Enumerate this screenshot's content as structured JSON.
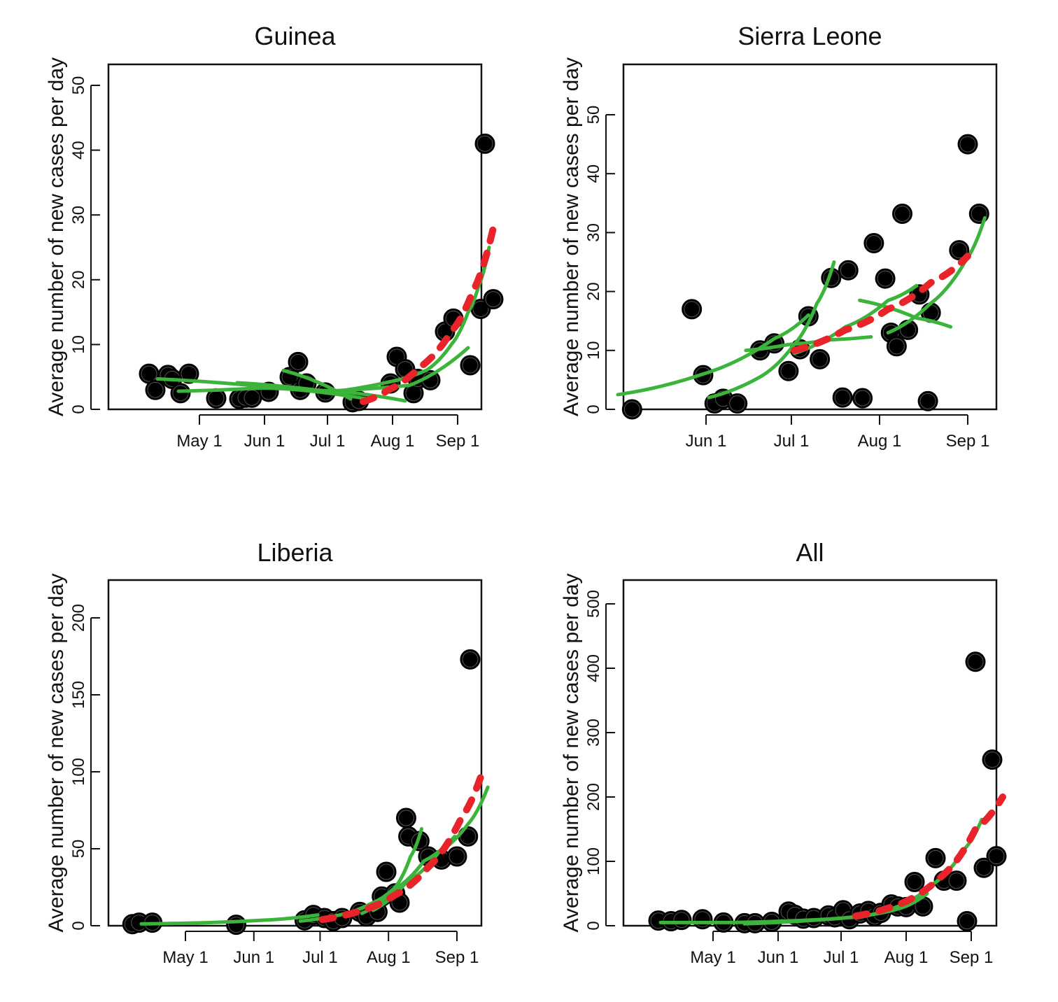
{
  "chart_data": [
    {
      "type": "scatter",
      "title": "Guinea",
      "xlabel": "",
      "ylabel": "Average number of new cases per day",
      "ylim": [
        0,
        50
      ],
      "xlim": [
        0,
        170
      ],
      "yticks": [
        0,
        10,
        20,
        30,
        40,
        50
      ],
      "xticks": [
        {
          "x": 30,
          "label": "May 1"
        },
        {
          "x": 61,
          "label": "Jun 1"
        },
        {
          "x": 91,
          "label": "Jul 1"
        },
        {
          "x": 122,
          "label": "Aug 1"
        },
        {
          "x": 153,
          "label": "Sep 1"
        }
      ],
      "points": [
        [
          6,
          5.5
        ],
        [
          9,
          3
        ],
        [
          15,
          5.3
        ],
        [
          17,
          4.7
        ],
        [
          21,
          2.5
        ],
        [
          25,
          5.5
        ],
        [
          38,
          1.7
        ],
        [
          49,
          1.6
        ],
        [
          52,
          1.8
        ],
        [
          55,
          1.8
        ],
        [
          63,
          2.7
        ],
        [
          73,
          5
        ],
        [
          77,
          7.3
        ],
        [
          78,
          3
        ],
        [
          81,
          4
        ],
        [
          90,
          2.6
        ],
        [
          103,
          1.1
        ],
        [
          106,
          1.3
        ],
        [
          121,
          4
        ],
        [
          124,
          8.1
        ],
        [
          128,
          6.2
        ],
        [
          132,
          2.5
        ],
        [
          134,
          4.7
        ],
        [
          140,
          4.5
        ],
        [
          147,
          12
        ],
        [
          151,
          14
        ],
        [
          159,
          6.8
        ],
        [
          164,
          15.5
        ],
        [
          166,
          41
        ],
        [
          170,
          17
        ]
      ],
      "series": [
        {
          "name": "fit-1",
          "style": "solid",
          "points": [
            [
              10,
              4.7
            ],
            [
              70,
              3.2
            ],
            [
              110,
              1.6
            ]
          ]
        },
        {
          "name": "fit-2",
          "style": "solid",
          "points": [
            [
              20,
              2.8
            ],
            [
              60,
              3.3
            ],
            [
              95,
              2.8
            ],
            [
              128,
              1.3
            ]
          ]
        },
        {
          "name": "fit-3",
          "style": "solid",
          "points": [
            [
              48,
              4.1
            ],
            [
              90,
              2.8
            ],
            [
              130,
              3.7
            ],
            [
              158,
              9.5
            ]
          ]
        },
        {
          "name": "fit-4",
          "style": "solid",
          "points": [
            [
              70,
              6
            ],
            [
              102,
              1.6
            ]
          ]
        },
        {
          "name": "fit-5",
          "style": "solid",
          "points": [
            [
              90,
              2.6
            ],
            [
              120,
              4.2
            ],
            [
              138,
              6
            ],
            [
              150,
              10
            ],
            [
              158,
              15
            ],
            [
              163,
              19
            ],
            [
              168,
              25
            ]
          ]
        },
        {
          "name": "projection",
          "style": "dashed",
          "points": [
            [
              108,
              1.2
            ],
            [
              120,
              3
            ],
            [
              135,
              6.5
            ],
            [
              150,
              12
            ],
            [
              160,
              18
            ],
            [
              170,
              28
            ]
          ]
        }
      ]
    },
    {
      "type": "scatter",
      "title": "Sierra Leone",
      "xlabel": "",
      "ylabel": "Average number of new cases per day",
      "ylim": [
        0,
        50
      ],
      "xlim": [
        0,
        135
      ],
      "yticks": [
        0,
        10,
        20,
        30,
        40,
        50
      ],
      "xticks": [
        {
          "x": 31,
          "label": "Jun 1"
        },
        {
          "x": 61,
          "label": "Jul 1"
        },
        {
          "x": 92,
          "label": "Aug 1"
        },
        {
          "x": 123,
          "label": "Sep 1"
        }
      ],
      "points": [
        [
          5,
          0
        ],
        [
          26,
          17
        ],
        [
          30,
          5.8
        ],
        [
          34,
          1
        ],
        [
          37,
          1.8
        ],
        [
          42,
          1
        ],
        [
          50,
          10
        ],
        [
          55,
          11.2
        ],
        [
          60,
          6.5
        ],
        [
          64,
          10.2
        ],
        [
          67,
          15.8
        ],
        [
          71,
          8.5
        ],
        [
          75,
          22.3
        ],
        [
          79,
          2
        ],
        [
          81,
          23.6
        ],
        [
          86,
          1.9
        ],
        [
          90,
          28.2
        ],
        [
          94,
          22.2
        ],
        [
          96,
          13
        ],
        [
          98,
          10.7
        ],
        [
          100,
          33.2
        ],
        [
          102,
          13.5
        ],
        [
          106,
          19.5
        ],
        [
          109,
          1.4
        ],
        [
          110,
          16.4
        ],
        [
          120,
          27
        ],
        [
          123,
          45
        ],
        [
          127,
          33.2
        ]
      ],
      "series": [
        {
          "name": "fit-1",
          "style": "solid",
          "points": [
            [
              0,
              2.5
            ],
            [
              30,
              6
            ],
            [
              55,
              12
            ],
            [
              67,
              16
            ]
          ]
        },
        {
          "name": "fit-2",
          "style": "solid",
          "points": [
            [
              32,
              2
            ],
            [
              50,
              5.5
            ],
            [
              62,
              11
            ],
            [
              70,
              18
            ],
            [
              76,
              25
            ]
          ]
        },
        {
          "name": "fit-3",
          "style": "solid",
          "points": [
            [
              45,
              10
            ],
            [
              60,
              11
            ],
            [
              75,
              11.8
            ],
            [
              89,
              12.3
            ]
          ]
        },
        {
          "name": "fit-4",
          "style": "solid",
          "points": [
            [
              62,
              9.5
            ],
            [
              80,
              14
            ],
            [
              95,
              18.5
            ],
            [
              105,
              21
            ]
          ]
        },
        {
          "name": "fit-5",
          "style": "solid",
          "points": [
            [
              85,
              18.5
            ],
            [
              105,
              15.5
            ],
            [
              117,
              14
            ]
          ]
        },
        {
          "name": "fit-6",
          "style": "solid",
          "points": [
            [
              95,
              13
            ],
            [
              110,
              18
            ],
            [
              122,
              25
            ],
            [
              129,
              32.5
            ]
          ]
        },
        {
          "name": "projection",
          "style": "dashed",
          "points": [
            [
              62,
              10
            ],
            [
              80,
              13.5
            ],
            [
              95,
              17
            ],
            [
              110,
              21.5
            ],
            [
              123,
              26
            ]
          ]
        }
      ]
    },
    {
      "type": "scatter",
      "title": "Liberia",
      "xlabel": "",
      "ylabel": "Average number of new cases per day",
      "ylim": [
        0,
        200
      ],
      "xlim": [
        0,
        170
      ],
      "yticks": [
        0,
        50,
        100,
        150,
        200
      ],
      "xticks": [
        {
          "x": 30,
          "label": "May 1"
        },
        {
          "x": 61,
          "label": "Jun 1"
        },
        {
          "x": 91,
          "label": "Jul 1"
        },
        {
          "x": 122,
          "label": "Aug 1"
        },
        {
          "x": 153,
          "label": "Sep 1"
        }
      ],
      "points": [
        [
          6,
          1
        ],
        [
          9,
          2
        ],
        [
          15,
          2
        ],
        [
          53,
          0.6
        ],
        [
          84,
          3.5
        ],
        [
          88,
          7
        ],
        [
          93,
          5
        ],
        [
          97,
          3
        ],
        [
          101,
          5
        ],
        [
          109,
          9
        ],
        [
          112,
          6
        ],
        [
          117,
          9
        ],
        [
          119,
          19
        ],
        [
          121,
          35
        ],
        [
          125,
          21
        ],
        [
          127,
          15
        ],
        [
          130,
          70
        ],
        [
          131,
          58
        ],
        [
          136,
          55
        ],
        [
          140,
          45
        ],
        [
          146,
          43
        ],
        [
          153,
          45
        ],
        [
          158,
          58
        ],
        [
          159,
          173
        ]
      ],
      "series": [
        {
          "name": "fit-1",
          "style": "solid",
          "points": [
            [
              10,
              1.2
            ],
            [
              40,
              2
            ],
            [
              70,
              4
            ],
            [
              90,
              7
            ]
          ]
        },
        {
          "name": "fit-2",
          "style": "solid",
          "points": [
            [
              82,
              3
            ],
            [
              100,
              7
            ],
            [
              115,
              15
            ],
            [
              125,
              25
            ],
            [
              132,
              45
            ],
            [
              137,
              63
            ]
          ]
        },
        {
          "name": "fit-3",
          "style": "solid",
          "points": [
            [
              110,
              8
            ],
            [
              125,
              24
            ],
            [
              138,
              42
            ],
            [
              152,
              58
            ]
          ]
        },
        {
          "name": "fit-4",
          "style": "solid",
          "points": [
            [
              115,
              10
            ],
            [
              130,
              28
            ],
            [
              145,
              48
            ],
            [
              158,
              66
            ],
            [
              167,
              90
            ]
          ]
        },
        {
          "name": "projection",
          "style": "dashed",
          "points": [
            [
              92,
              4
            ],
            [
              110,
              10
            ],
            [
              125,
              20
            ],
            [
              140,
              38
            ],
            [
              155,
              70
            ],
            [
              165,
              102
            ]
          ]
        }
      ]
    },
    {
      "type": "scatter",
      "title": "All",
      "xlabel": "",
      "ylabel": "Average number of new cases per day",
      "ylim": [
        0,
        500
      ],
      "xlim": [
        0,
        170
      ],
      "yticks": [
        0,
        100,
        200,
        300,
        400,
        500
      ],
      "xticks": [
        {
          "x": 30,
          "label": "May 1"
        },
        {
          "x": 61,
          "label": "Jun 1"
        },
        {
          "x": 91,
          "label": "Jul 1"
        },
        {
          "x": 122,
          "label": "Aug 1"
        },
        {
          "x": 153,
          "label": "Sep 1"
        }
      ],
      "points": [
        [
          4,
          8
        ],
        [
          10,
          7
        ],
        [
          15,
          9
        ],
        [
          25,
          10
        ],
        [
          35,
          5
        ],
        [
          45,
          4
        ],
        [
          50,
          4
        ],
        [
          58,
          6
        ],
        [
          66,
          22
        ],
        [
          69,
          17
        ],
        [
          73,
          11
        ],
        [
          78,
          12
        ],
        [
          85,
          16
        ],
        [
          88,
          13
        ],
        [
          92,
          24
        ],
        [
          95,
          10
        ],
        [
          100,
          19
        ],
        [
          104,
          23
        ],
        [
          107,
          15
        ],
        [
          110,
          20
        ],
        [
          115,
          33
        ],
        [
          118,
          30
        ],
        [
          122,
          29
        ],
        [
          126,
          68
        ],
        [
          130,
          30
        ],
        [
          136,
          105
        ],
        [
          140,
          70
        ],
        [
          146,
          70
        ],
        [
          151,
          7
        ],
        [
          155,
          410
        ],
        [
          159,
          90
        ],
        [
          163,
          258
        ],
        [
          165,
          108
        ]
      ],
      "series": [
        {
          "name": "fit-1",
          "style": "solid",
          "points": [
            [
              5,
              5
            ],
            [
              40,
              5
            ],
            [
              70,
              8
            ],
            [
              100,
              14
            ]
          ]
        },
        {
          "name": "fit-2",
          "style": "solid",
          "points": [
            [
              45,
              3
            ],
            [
              80,
              9
            ],
            [
              105,
              17
            ],
            [
              120,
              28
            ],
            [
              132,
              50
            ]
          ]
        },
        {
          "name": "fit-3",
          "style": "solid",
          "points": [
            [
              98,
              12
            ],
            [
              118,
              30
            ],
            [
              135,
              65
            ],
            [
              150,
              120
            ],
            [
              158,
              165
            ]
          ]
        },
        {
          "name": "projection",
          "style": "dashed",
          "points": [
            [
              98,
              15
            ],
            [
              120,
              35
            ],
            [
              140,
              80
            ],
            [
              155,
              150
            ],
            [
              168,
              200
            ]
          ]
        }
      ]
    }
  ]
}
